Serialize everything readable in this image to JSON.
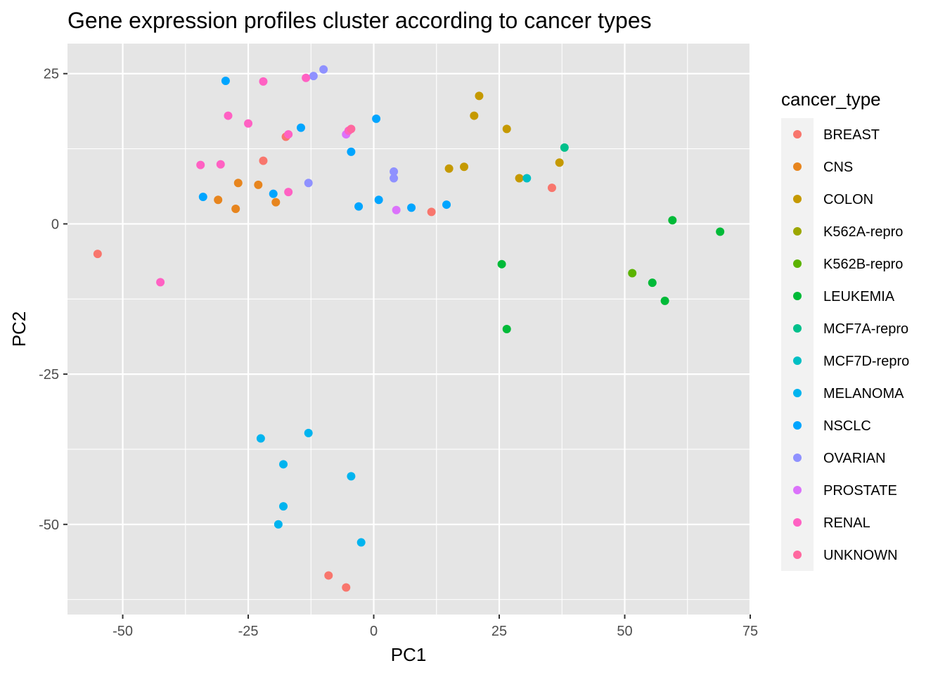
{
  "chart_data": {
    "type": "scatter",
    "title": "Gene expression profiles cluster according to cancer types",
    "xlabel": "PC1",
    "ylabel": "PC2",
    "xlim": [
      -61,
      75
    ],
    "ylim": [
      -65,
      30
    ],
    "x_ticks": [
      -50,
      -25,
      0,
      25,
      50,
      75
    ],
    "y_ticks": [
      25,
      0,
      -25,
      -50
    ],
    "x_tick_labels": [
      "-50",
      "-25",
      "0",
      "25",
      "50",
      "75"
    ],
    "y_tick_labels": [
      "25",
      "0",
      "-25",
      "-50"
    ],
    "grid": true,
    "legend_position": "right",
    "legend_title": "cancer_type",
    "series": [
      {
        "name": "BREAST",
        "color": "#F8766D",
        "points": [
          [
            -55,
            -5
          ],
          [
            11.5,
            2
          ],
          [
            35.5,
            6
          ],
          [
            -22,
            10.5
          ],
          [
            -17.5,
            14.5
          ],
          [
            -9,
            -58.5
          ],
          [
            -5.5,
            -60.5
          ]
        ]
      },
      {
        "name": "CNS",
        "color": "#E7851E",
        "points": [
          [
            -27,
            6.8
          ],
          [
            -23,
            6.5
          ],
          [
            -31,
            4
          ],
          [
            -27.5,
            2.5
          ],
          [
            -19.5,
            3.6
          ]
        ]
      },
      {
        "name": "COLON",
        "color": "#C59900",
        "points": [
          [
            21,
            21.3
          ],
          [
            20,
            18
          ],
          [
            26.5,
            15.8
          ],
          [
            15,
            9.2
          ],
          [
            18,
            9.5
          ],
          [
            29,
            7.6
          ],
          [
            37,
            10.2
          ]
        ]
      },
      {
        "name": "K562A-repro",
        "color": "#9CA700",
        "points": []
      },
      {
        "name": "K562B-repro",
        "color": "#5BB300",
        "points": [
          [
            51.5,
            -8.2
          ]
        ]
      },
      {
        "name": "LEUKEMIA",
        "color": "#00BA38",
        "points": [
          [
            25.5,
            -6.7
          ],
          [
            26.5,
            -17.5
          ],
          [
            55.5,
            -9.8
          ],
          [
            58,
            -12.8
          ],
          [
            59.5,
            0.6
          ],
          [
            69,
            -1.3
          ]
        ]
      },
      {
        "name": "MCF7A-repro",
        "color": "#00C08B",
        "points": [
          [
            38,
            12.7
          ]
        ]
      },
      {
        "name": "MCF7D-repro",
        "color": "#00BFC4",
        "points": [
          [
            30.5,
            7.6
          ]
        ]
      },
      {
        "name": "MELANOMA",
        "color": "#00B4EF",
        "points": [
          [
            -22.5,
            -35.7
          ],
          [
            -13,
            -34.8
          ],
          [
            -18,
            -40
          ],
          [
            -4.5,
            -42
          ],
          [
            -18,
            -47
          ],
          [
            -19,
            -50
          ],
          [
            -2.5,
            -53
          ]
        ]
      },
      {
        "name": "NSCLC",
        "color": "#00A5FF",
        "points": [
          [
            -29.5,
            23.8
          ],
          [
            -14.5,
            16
          ],
          [
            0.5,
            17.5
          ],
          [
            -4.5,
            12
          ],
          [
            -34,
            4.5
          ],
          [
            -20,
            5
          ],
          [
            -3,
            2.9
          ],
          [
            1,
            4
          ],
          [
            7.5,
            2.7
          ],
          [
            14.5,
            3.2
          ]
        ]
      },
      {
        "name": "OVARIAN",
        "color": "#8F91FF",
        "points": [
          [
            -10,
            25.7
          ],
          [
            -12,
            24.6
          ],
          [
            -13,
            6.8
          ],
          [
            4,
            8.7
          ],
          [
            4,
            7.6
          ]
        ]
      },
      {
        "name": "PROSTATE",
        "color": "#DB72FB",
        "points": [
          [
            -5.5,
            14.9
          ],
          [
            4.5,
            2.3
          ]
        ]
      },
      {
        "name": "RENAL",
        "color": "#FF61C3",
        "points": [
          [
            -22,
            23.7
          ],
          [
            -13.5,
            24.3
          ],
          [
            -29,
            18
          ],
          [
            -25,
            16.7
          ],
          [
            -17,
            14.9
          ],
          [
            -34.5,
            9.8
          ],
          [
            -30.5,
            9.9
          ],
          [
            -17,
            5.3
          ],
          [
            -42.5,
            -9.7
          ],
          [
            -5,
            15.5
          ]
        ]
      },
      {
        "name": "UNKNOWN",
        "color": "#FF689F",
        "points": [
          [
            -4.5,
            15.8
          ]
        ]
      }
    ]
  },
  "colors": {
    "panel_background": "#E5E5E5",
    "grid_line": "#FFFFFF",
    "tick_text": "#4D4D4D",
    "legend_key_background": "#F2F2F2"
  }
}
